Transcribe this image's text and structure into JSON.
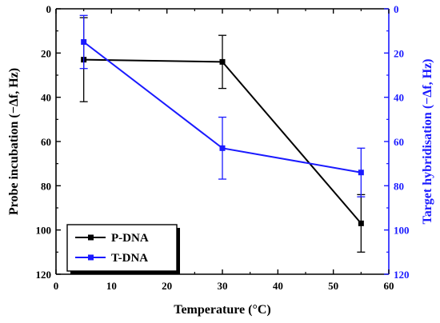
{
  "chart_data": {
    "type": "line",
    "xlabel": "Temperature (°C)",
    "ylabel": "Probe incubation (−Δf, Hz)",
    "y2label": "Target hybridisation (−Δf, Hz)",
    "xlim": [
      0,
      60
    ],
    "ylim": [
      0,
      120
    ],
    "y2lim": [
      0,
      120
    ],
    "y_inverted": true,
    "x_ticks": [
      "0",
      "10",
      "20",
      "30",
      "40",
      "50",
      "60"
    ],
    "y_ticks": [
      "0",
      "20",
      "40",
      "60",
      "80",
      "100",
      "120"
    ],
    "y2_ticks": [
      "0",
      "20",
      "40",
      "60",
      "80",
      "100",
      "120"
    ],
    "grid": false,
    "legend_position": "bottom-left",
    "series": [
      {
        "name": "P-DNA",
        "axis": "left",
        "color": "#000000",
        "marker": "square",
        "x": [
          5,
          30,
          55
        ],
        "y": [
          23,
          24,
          97
        ],
        "error": [
          19,
          12,
          13
        ]
      },
      {
        "name": "T-DNA",
        "axis": "right",
        "color": "#1a1aff",
        "marker": "square",
        "x": [
          5,
          30,
          55
        ],
        "y": [
          15,
          63,
          74
        ],
        "error": [
          12,
          14,
          11
        ]
      }
    ]
  }
}
